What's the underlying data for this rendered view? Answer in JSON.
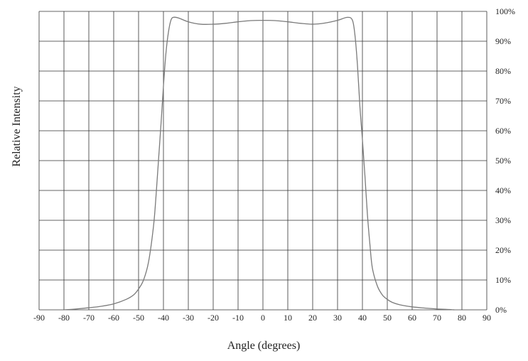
{
  "chart_data": {
    "type": "line",
    "title": "",
    "xlabel": "Angle (degrees)",
    "ylabel": "Relative Intensity",
    "xlim": [
      -90,
      90
    ],
    "ylim": [
      0,
      100
    ],
    "x_ticks": [
      -90,
      -80,
      -70,
      -60,
      -50,
      -40,
      -30,
      -20,
      -10,
      0,
      10,
      20,
      30,
      40,
      50,
      60,
      70,
      80,
      90
    ],
    "x_tick_labels": [
      "-90",
      "-80",
      "-70",
      "-60",
      "-50",
      "-40",
      "-30",
      "-20",
      "-10",
      "0",
      "10",
      "20",
      "30",
      "40",
      "50",
      "60",
      "70",
      "80",
      "90"
    ],
    "y_ticks": [
      0,
      10,
      20,
      30,
      40,
      50,
      60,
      70,
      80,
      90,
      100
    ],
    "y_tick_labels": [
      "0%",
      "10%",
      "20%",
      "30%",
      "40%",
      "50%",
      "60%",
      "70%",
      "80%",
      "90%",
      "100%"
    ],
    "y_axis_side": "right",
    "grid": true,
    "line_color": "#7a7a7a",
    "grid_color": "#333333",
    "series": [
      {
        "x": [
          -80,
          -75,
          -70,
          -65,
          -60,
          -55,
          -52,
          -50,
          -48,
          -46,
          -44,
          -43,
          -42,
          -41,
          -40,
          -39,
          -38,
          -37,
          -36,
          -34,
          -30,
          -25,
          -20,
          -15,
          -10,
          -5,
          0,
          5,
          10,
          15,
          20,
          25,
          30,
          34,
          36,
          37,
          38,
          39,
          40,
          41,
          42,
          43,
          44,
          46,
          48,
          50,
          52,
          55,
          60,
          65,
          70,
          75,
          77
        ],
        "y": [
          0,
          0.3,
          0.7,
          1.2,
          2,
          3.5,
          5,
          7,
          10,
          16,
          28,
          38,
          50,
          62,
          75,
          86,
          93,
          97,
          98,
          97.8,
          96.5,
          95.7,
          95.7,
          96,
          96.5,
          96.9,
          97,
          96.9,
          96.5,
          96,
          95.7,
          96.1,
          97,
          98,
          97,
          92,
          82,
          68,
          57,
          45,
          32,
          22,
          14,
          8,
          5,
          3.5,
          2.5,
          1.7,
          1,
          0.6,
          0.3,
          0.1,
          0
        ]
      }
    ]
  }
}
